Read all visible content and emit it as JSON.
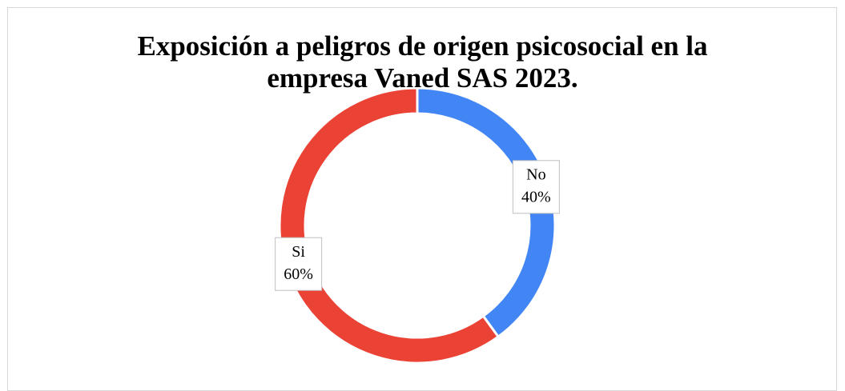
{
  "chart_data": {
    "type": "donut",
    "title": "Exposición a peligros de origen psicosocial en la empresa Vaned SAS 2023.",
    "categories": [
      "No",
      "Si"
    ],
    "values": [
      40,
      60
    ],
    "value_labels": [
      "40%",
      "60%"
    ],
    "colors": [
      "#4285f4",
      "#ea4335"
    ]
  }
}
